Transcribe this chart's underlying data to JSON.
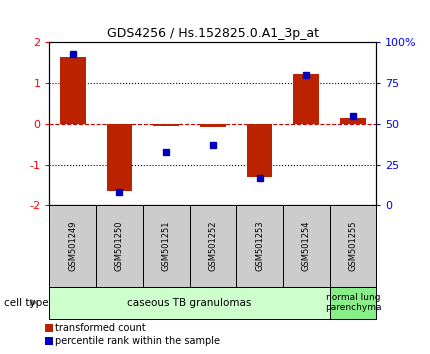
{
  "title": "GDS4256 / Hs.152825.0.A1_3p_at",
  "samples": [
    "GSM501249",
    "GSM501250",
    "GSM501251",
    "GSM501252",
    "GSM501253",
    "GSM501254",
    "GSM501255"
  ],
  "transformed_count": [
    1.65,
    -1.65,
    -0.05,
    -0.07,
    -1.3,
    1.22,
    0.15
  ],
  "percentile_rank": [
    93,
    8,
    33,
    37,
    17,
    80,
    55
  ],
  "ylim_left": [
    -2,
    2
  ],
  "yticks_left": [
    -2,
    -1,
    0,
    1,
    2
  ],
  "yticks_right": [
    0,
    25,
    50,
    75,
    100
  ],
  "ytick_labels_right": [
    "0",
    "25",
    "50",
    "75",
    "100%"
  ],
  "bar_color": "#bb2200",
  "square_color": "#0000bb",
  "zero_line_color": "#cc0000",
  "dotted_line_color": "#000000",
  "group1_samples": 6,
  "group1_label": "caseous TB granulomas",
  "group2_label": "normal lung\nparenchyma",
  "group1_color": "#ccffcc",
  "group2_color": "#88ee88",
  "cell_type_label": "cell type",
  "legend_red": "transformed count",
  "legend_blue": "percentile rank within the sample",
  "bar_width": 0.55,
  "sample_box_color": "#cccccc",
  "title_fontsize": 9,
  "axis_fontsize": 8,
  "sample_fontsize": 6,
  "legend_fontsize": 7
}
